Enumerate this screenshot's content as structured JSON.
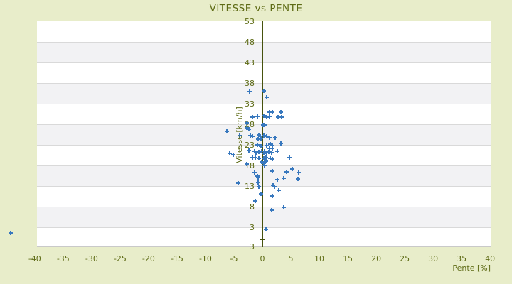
{
  "title": "VITESSE vs PENTE",
  "colors": {
    "background": "#e8edca",
    "text": "#5e6b15",
    "band_light": "#ffffff",
    "band_dark": "#f2f2f4",
    "gridline": "#d9d9d9",
    "plot_border": "#c9c9c9",
    "zero_line": "#47530e",
    "marker": "#3878be"
  },
  "chart_data": {
    "type": "scatter",
    "title": "VITESSE vs PENTE",
    "xlabel": "Pente [%]",
    "ylabel": "Vitesse [km/h]",
    "xlim": [
      -39.6,
      40.1
    ],
    "ylim": [
      -1.84,
      53
    ],
    "x_ticks": [
      -40,
      -35,
      -30,
      -25,
      -20,
      -15,
      -10,
      -5,
      0,
      5,
      10,
      15,
      20,
      25,
      30,
      35,
      40
    ],
    "y_gridlines": [
      53,
      48,
      43,
      38,
      33,
      28,
      23,
      18,
      13,
      8,
      3
    ],
    "y_bottom_label": "3",
    "grid": "horizontal-bands",
    "legend": "none",
    "points": [
      [
        -2.2,
        35.9
      ],
      [
        0.2,
        36.1
      ],
      [
        0.8,
        34.6
      ],
      [
        -1.8,
        29.7
      ],
      [
        -0.9,
        29.9
      ],
      [
        0.3,
        30.1
      ],
      [
        0.7,
        29.7
      ],
      [
        1.2,
        29.9
      ],
      [
        1.3,
        31.0
      ],
      [
        1.8,
        31.0
      ],
      [
        2.7,
        29.8
      ],
      [
        3.2,
        30.9
      ],
      [
        3.4,
        29.7
      ],
      [
        -2.8,
        28.3
      ],
      [
        -2.8,
        27.1
      ],
      [
        -2.4,
        26.8
      ],
      [
        -6.2,
        26.3
      ],
      [
        0.1,
        27.8
      ],
      [
        0.4,
        27.8
      ],
      [
        -4.0,
        25.2
      ],
      [
        -2.1,
        25.2
      ],
      [
        -1.7,
        25.1
      ],
      [
        -0.6,
        25.4
      ],
      [
        0.3,
        25.2
      ],
      [
        0.7,
        25.1
      ],
      [
        1.3,
        24.7
      ],
      [
        2.2,
        24.7
      ],
      [
        -0.7,
        24.4
      ],
      [
        -0.2,
        24.6
      ],
      [
        -0.9,
        23.0
      ],
      [
        -0.3,
        22.7
      ],
      [
        0.8,
        22.8
      ],
      [
        1.4,
        23.2
      ],
      [
        1.8,
        22.8
      ],
      [
        3.2,
        23.3
      ],
      [
        1.2,
        22.1
      ],
      [
        1.7,
        22.1
      ],
      [
        -2.4,
        21.6
      ],
      [
        -1.4,
        21.4
      ],
      [
        -1.1,
        21.1
      ],
      [
        -0.6,
        21.3
      ],
      [
        -0.1,
        21.4
      ],
      [
        0.2,
        20.9
      ],
      [
        0.4,
        21.4
      ],
      [
        0.7,
        21.1
      ],
      [
        1.1,
        21.3
      ],
      [
        1.3,
        21.4
      ],
      [
        1.6,
        21.1
      ],
      [
        2.6,
        21.4
      ],
      [
        -5.7,
        20.9
      ],
      [
        -5.1,
        20.6
      ],
      [
        -1.8,
        19.9
      ],
      [
        -1.2,
        19.9
      ],
      [
        -0.6,
        19.7
      ],
      [
        0.2,
        19.7
      ],
      [
        0.6,
        19.9
      ],
      [
        1.4,
        19.7
      ],
      [
        1.8,
        19.6
      ],
      [
        4.8,
        19.9
      ],
      [
        -2.8,
        18.3
      ],
      [
        -0.1,
        18.9
      ],
      [
        0.3,
        18.5
      ],
      [
        0.4,
        18.0
      ],
      [
        0.6,
        19.0
      ],
      [
        1.8,
        16.6
      ],
      [
        4.3,
        16.4
      ],
      [
        5.3,
        17.1
      ],
      [
        -1.4,
        16.3
      ],
      [
        -0.9,
        15.4
      ],
      [
        -0.7,
        15.1
      ],
      [
        3.8,
        14.9
      ],
      [
        6.2,
        14.7
      ],
      [
        6.4,
        16.3
      ],
      [
        2.6,
        14.6
      ],
      [
        -4.2,
        13.7
      ],
      [
        -0.8,
        13.9
      ],
      [
        -0.6,
        12.8
      ],
      [
        2.1,
        12.8
      ],
      [
        1.9,
        13.2
      ],
      [
        2.9,
        12.0
      ],
      [
        -0.2,
        11.1
      ],
      [
        1.7,
        10.6
      ],
      [
        -1.3,
        9.4
      ],
      [
        3.7,
        7.8
      ],
      [
        1.6,
        7.1
      ],
      [
        0.6,
        2.5
      ],
      [
        -44.2,
        1.6
      ]
    ]
  }
}
